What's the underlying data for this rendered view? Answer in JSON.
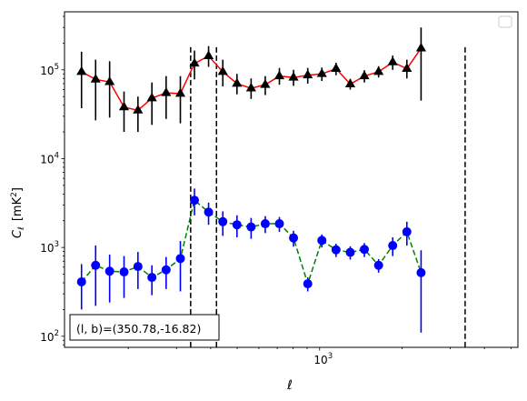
{
  "chart_data": {
    "type": "scatter",
    "title": "",
    "xlabel": "ℓ",
    "ylabel_main": "C",
    "ylabel_sub": "ℓ",
    "ylabel_unit": "[mK",
    "ylabel_unit_sup": "2",
    "ylabel_unit_close": "]",
    "xscale": "log",
    "yscale": "log",
    "xlim": [
      117,
      5300
    ],
    "ylim": [
      75,
      450000
    ],
    "x_tick_labels": [
      {
        "base": "10",
        "exp": "3",
        "value": 1000
      }
    ],
    "y_tick_labels": [
      {
        "base": "10",
        "exp": "2",
        "value": 100
      },
      {
        "base": "10",
        "exp": "3",
        "value": 1000
      },
      {
        "base": "10",
        "exp": "4",
        "value": 10000
      },
      {
        "base": "10",
        "exp": "5",
        "value": 100000
      }
    ],
    "vertical_lines": [
      338,
      420,
      3400
    ],
    "annotation": "(l, b)=(350.78,-16.82)",
    "legend": {
      "placement": "top-right",
      "entries": []
    },
    "grid": false,
    "series": [
      {
        "marker": "triangle",
        "color": "#000000",
        "line_color": "#ff0000",
        "line_style": "solid",
        "points": [
          {
            "x": 135,
            "y": 95000,
            "lo": 37000,
            "hi": 160000
          },
          {
            "x": 152,
            "y": 78000,
            "lo": 27000,
            "hi": 130000
          },
          {
            "x": 171,
            "y": 73000,
            "lo": 29000,
            "hi": 125000
          },
          {
            "x": 193,
            "y": 38000,
            "lo": 20000,
            "hi": 57000
          },
          {
            "x": 217,
            "y": 35000,
            "lo": 20000,
            "hi": 50000
          },
          {
            "x": 244,
            "y": 48000,
            "lo": 24000,
            "hi": 72000
          },
          {
            "x": 275,
            "y": 55000,
            "lo": 28000,
            "hi": 85000
          },
          {
            "x": 310,
            "y": 54000,
            "lo": 25000,
            "hi": 85000
          },
          {
            "x": 349,
            "y": 118000,
            "lo": 78000,
            "hi": 165000
          },
          {
            "x": 393,
            "y": 143000,
            "lo": 108000,
            "hi": 185000
          },
          {
            "x": 443,
            "y": 95000,
            "lo": 65000,
            "hi": 130000
          },
          {
            "x": 499,
            "y": 70000,
            "lo": 53000,
            "hi": 90000
          },
          {
            "x": 562,
            "y": 62000,
            "lo": 47000,
            "hi": 80000
          },
          {
            "x": 633,
            "y": 68000,
            "lo": 52000,
            "hi": 85000
          },
          {
            "x": 713,
            "y": 85000,
            "lo": 68000,
            "hi": 105000
          },
          {
            "x": 803,
            "y": 82000,
            "lo": 66000,
            "hi": 100000
          },
          {
            "x": 905,
            "y": 87000,
            "lo": 70000,
            "hi": 105000
          },
          {
            "x": 1019,
            "y": 90000,
            "lo": 75000,
            "hi": 106000
          },
          {
            "x": 1148,
            "y": 103000,
            "lo": 87000,
            "hi": 120000
          },
          {
            "x": 1294,
            "y": 69000,
            "lo": 60000,
            "hi": 79000
          },
          {
            "x": 1457,
            "y": 85000,
            "lo": 72000,
            "hi": 99000
          },
          {
            "x": 1642,
            "y": 95000,
            "lo": 82000,
            "hi": 110000
          },
          {
            "x": 1849,
            "y": 122000,
            "lo": 100000,
            "hi": 145000
          },
          {
            "x": 2083,
            "y": 103000,
            "lo": 80000,
            "hi": 130000
          },
          {
            "x": 2347,
            "y": 175000,
            "lo": 45000,
            "hi": 300000
          }
        ]
      },
      {
        "marker": "circle",
        "color": "#0000ff",
        "line_color": "#008000",
        "line_style": "dashed",
        "points": [
          {
            "x": 135,
            "y": 410,
            "lo": 200,
            "hi": 650
          },
          {
            "x": 152,
            "y": 630,
            "lo": 220,
            "hi": 1050
          },
          {
            "x": 171,
            "y": 540,
            "lo": 240,
            "hi": 830
          },
          {
            "x": 193,
            "y": 530,
            "lo": 270,
            "hi": 800
          },
          {
            "x": 217,
            "y": 610,
            "lo": 340,
            "hi": 890
          },
          {
            "x": 244,
            "y": 460,
            "lo": 290,
            "hi": 630
          },
          {
            "x": 275,
            "y": 560,
            "lo": 340,
            "hi": 780
          },
          {
            "x": 310,
            "y": 750,
            "lo": 320,
            "hi": 1180
          },
          {
            "x": 349,
            "y": 3400,
            "lo": 2300,
            "hi": 4600
          },
          {
            "x": 393,
            "y": 2500,
            "lo": 1800,
            "hi": 3200
          },
          {
            "x": 443,
            "y": 1950,
            "lo": 1350,
            "hi": 2550
          },
          {
            "x": 499,
            "y": 1800,
            "lo": 1300,
            "hi": 2300
          },
          {
            "x": 562,
            "y": 1700,
            "lo": 1250,
            "hi": 2150
          },
          {
            "x": 633,
            "y": 1850,
            "lo": 1450,
            "hi": 2250
          },
          {
            "x": 713,
            "y": 1850,
            "lo": 1500,
            "hi": 2200
          },
          {
            "x": 803,
            "y": 1280,
            "lo": 1020,
            "hi": 1540
          },
          {
            "x": 905,
            "y": 390,
            "lo": 320,
            "hi": 460
          },
          {
            "x": 1019,
            "y": 1200,
            "lo": 1000,
            "hi": 1400
          },
          {
            "x": 1148,
            "y": 940,
            "lo": 780,
            "hi": 1100
          },
          {
            "x": 1294,
            "y": 880,
            "lo": 730,
            "hi": 1030
          },
          {
            "x": 1457,
            "y": 950,
            "lo": 780,
            "hi": 1120
          },
          {
            "x": 1642,
            "y": 630,
            "lo": 520,
            "hi": 740
          },
          {
            "x": 1849,
            "y": 1050,
            "lo": 800,
            "hi": 1300
          },
          {
            "x": 2083,
            "y": 1500,
            "lo": 1050,
            "hi": 1950
          },
          {
            "x": 2347,
            "y": 520,
            "lo": 110,
            "hi": 930
          }
        ]
      }
    ]
  }
}
